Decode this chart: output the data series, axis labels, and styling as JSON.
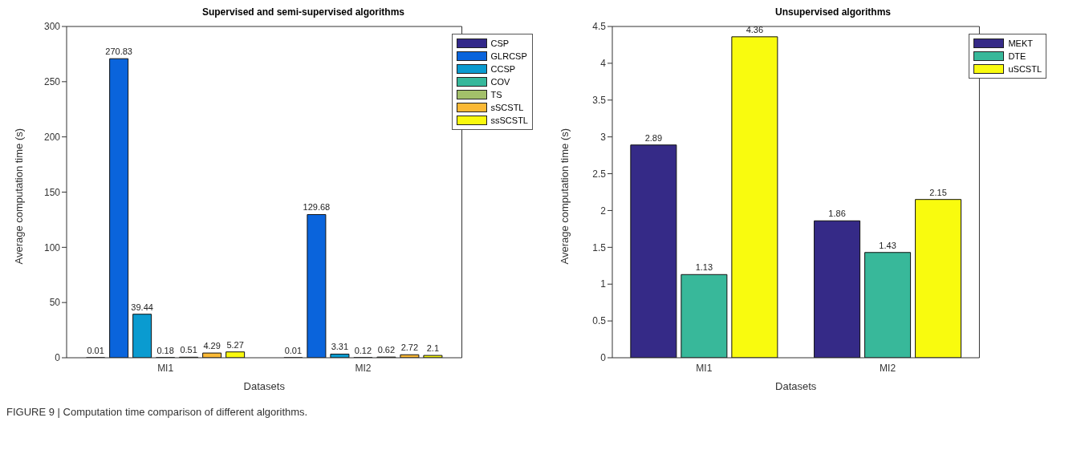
{
  "chart_data": [
    {
      "type": "bar",
      "title": "Supervised and semi-supervised algorithms",
      "xlabel": "Datasets",
      "ylabel": "Average computation time (s)",
      "categories": [
        "MI1",
        "MI2"
      ],
      "series": [
        {
          "name": "CSP",
          "color": "#32288a",
          "values": [
            0.01,
            0.01
          ]
        },
        {
          "name": "GLRCSP",
          "color": "#0a64dc",
          "values": [
            270.83,
            129.68
          ]
        },
        {
          "name": "CCSP",
          "color": "#0a9bd0",
          "values": [
            39.44,
            3.31
          ]
        },
        {
          "name": "COV",
          "color": "#36b89b",
          "values": [
            0.18,
            0.12
          ]
        },
        {
          "name": "TS",
          "color": "#a3c06a",
          "values": [
            0.51,
            0.62
          ]
        },
        {
          "name": "sSCSTL",
          "color": "#fbb935",
          "values": [
            4.29,
            2.72
          ]
        },
        {
          "name": "ssSCSTL",
          "color": "#f9f90e",
          "values": [
            5.27,
            2.1
          ]
        }
      ],
      "ylim": [
        0,
        300
      ],
      "yticks": [
        0,
        50,
        100,
        150,
        200,
        250,
        300
      ],
      "data_labels": true,
      "legend": "top right",
      "grid": false,
      "annotations": [
        "FIGURE 9 | Computation time comparison of different algorithms."
      ]
    },
    {
      "type": "bar",
      "title": "Unsupervised algorithms",
      "xlabel": "Datasets",
      "ylabel": "Average computation time (s)",
      "categories": [
        "MI1",
        "MI2"
      ],
      "series": [
        {
          "name": "MEKT",
          "color": "#352a87",
          "values": [
            2.89,
            1.86
          ]
        },
        {
          "name": "DTE",
          "color": "#38b89a",
          "values": [
            1.13,
            1.43
          ]
        },
        {
          "name": "uSCSTL",
          "color": "#f9fb0e",
          "values": [
            4.36,
            2.15
          ]
        }
      ],
      "ylim": [
        0,
        4.5
      ],
      "yticks": [
        0,
        0.5,
        1,
        1.5,
        2,
        2.5,
        3,
        3.5,
        4,
        4.5
      ],
      "data_labels": true,
      "legend": "top right",
      "grid": false
    }
  ]
}
